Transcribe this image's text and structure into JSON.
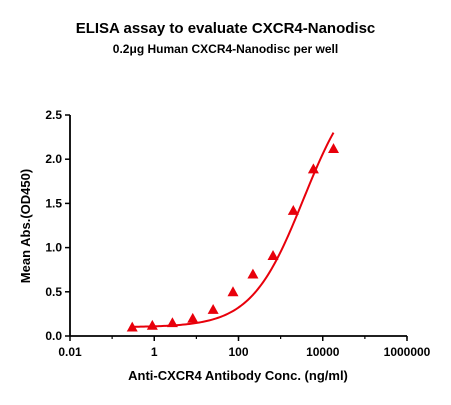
{
  "chart_data": {
    "type": "scatter",
    "title": "ELISA assay to evaluate CXCR4-Nanodisc",
    "subtitle": "0.2μg Human CXCR4-Nanodisc per well",
    "xlabel": "Anti-CXCR4 Antibody Conc. (ng/ml)",
    "ylabel": "Mean Abs.(OD450)",
    "x_scale": "log",
    "xlim": [
      0.01,
      1000000
    ],
    "ylim": [
      0,
      2.5
    ],
    "x_ticks": [
      0.01,
      1,
      100,
      10000,
      1000000
    ],
    "x_tick_labels": [
      "0.01",
      "1",
      "100",
      "10000",
      "1000000"
    ],
    "y_ticks": [
      0,
      0.5,
      1,
      1.5,
      2,
      2.5
    ],
    "y_tick_labels": [
      "0.0",
      "0.5",
      "1.0",
      "1.5",
      "2.0",
      "2.5"
    ],
    "grid": false,
    "legend": "none",
    "series": [
      {
        "marker": "triangle",
        "color": "#e8000b",
        "x": [
          0.3,
          0.9,
          2.7,
          8.2,
          25,
          74,
          220,
          660,
          2000,
          6000,
          18000
        ],
        "y": [
          0.1,
          0.12,
          0.15,
          0.2,
          0.3,
          0.5,
          0.7,
          0.91,
          1.42,
          1.89,
          2.12
        ]
      }
    ],
    "fit_curve": {
      "type": "4PL",
      "color": "#e8000b",
      "bottom": 0.1,
      "top": 3.0,
      "ec50": 3500,
      "hill": 0.7
    }
  }
}
